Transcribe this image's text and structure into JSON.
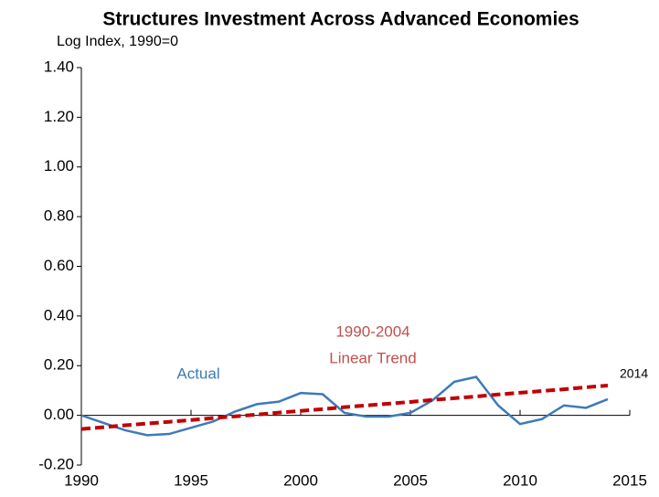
{
  "chart_data": {
    "type": "line",
    "title": "Structures Investment Across Advanced Economies",
    "y_axis_label": "Log Index, 1990=0",
    "x": [
      1990,
      1991,
      1992,
      1993,
      1994,
      1995,
      1996,
      1997,
      1998,
      1999,
      2000,
      2001,
      2002,
      2003,
      2004,
      2005,
      2006,
      2007,
      2008,
      2009,
      2010,
      2011,
      2012,
      2013,
      2014
    ],
    "series": [
      {
        "name": "Actual",
        "color": "#3d7ab8",
        "dashed": false,
        "values": [
          0.0,
          -0.03,
          -0.06,
          -0.08,
          -0.075,
          -0.05,
          -0.025,
          0.015,
          0.045,
          0.055,
          0.09,
          0.085,
          0.01,
          -0.005,
          -0.005,
          0.01,
          0.06,
          0.135,
          0.155,
          0.04,
          -0.035,
          -0.015,
          0.04,
          0.03,
          0.065
        ]
      },
      {
        "name": "1990-2004 Linear Trend",
        "color": "#c00000",
        "dashed": true,
        "values": [
          -0.055,
          -0.048,
          -0.04,
          -0.033,
          -0.026,
          -0.019,
          -0.011,
          -0.004,
          0.003,
          0.011,
          0.018,
          0.025,
          0.033,
          0.04,
          0.047,
          0.054,
          0.062,
          0.069,
          0.076,
          0.084,
          0.091,
          0.098,
          0.105,
          0.113,
          0.12
        ]
      }
    ],
    "annotations": [
      {
        "text": "Actual",
        "color": "#3d7ab8"
      },
      {
        "text": "1990-2004",
        "color": "#c0504d"
      },
      {
        "text": "Linear Trend",
        "color": "#c0504d"
      },
      {
        "text": "2014",
        "color": "#000000"
      }
    ],
    "xlim": [
      1990,
      2015
    ],
    "xticks": [
      1990,
      1995,
      2000,
      2005,
      2010,
      2015
    ],
    "ylim": [
      -0.2,
      1.4
    ],
    "yticks": [
      {
        "value": -0.2,
        "label": "-0.20"
      },
      {
        "value": 0,
        "label": "0.00"
      },
      {
        "value": 0.2,
        "label": "0.20"
      },
      {
        "value": 0.4,
        "label": "0.40"
      },
      {
        "value": 0.6,
        "label": "0.60"
      },
      {
        "value": 0.8,
        "label": "0.80"
      },
      {
        "value": 1.0,
        "label": "1.00"
      },
      {
        "value": 1.2,
        "label": "1.20"
      },
      {
        "value": 1.4,
        "label": "1.40"
      }
    ]
  }
}
